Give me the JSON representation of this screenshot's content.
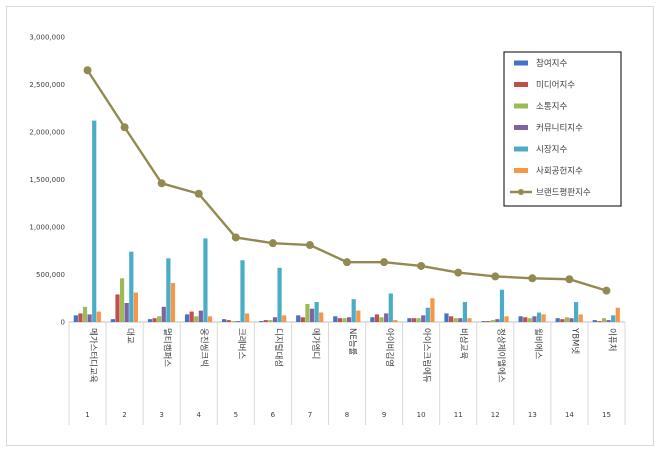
{
  "chart_data": {
    "type": "bar",
    "title": "",
    "xlabel": "",
    "ylabel": "",
    "ylim": [
      0,
      3000000
    ],
    "yticks": [
      "0",
      "500,000",
      "1,000,000",
      "1,500,000",
      "2,000,000",
      "2,500,000",
      "3,000,000"
    ],
    "categories": [
      "메가스터디교육",
      "대교",
      "멀티캠퍼스",
      "웅진씽크빅",
      "크레버스",
      "디지털대성",
      "메가엠디",
      "NE능률",
      "아이비김영",
      "아이스크림에듀",
      "비상교육",
      "정상제이엘에스",
      "윌비에스",
      "YBM넷",
      "이퓨처"
    ],
    "category_numbers": [
      "1",
      "2",
      "3",
      "4",
      "5",
      "6",
      "7",
      "8",
      "9",
      "10",
      "11",
      "12",
      "13",
      "14",
      "15"
    ],
    "series": [
      {
        "name": "참여지수",
        "color": "#4472c4",
        "values": [
          70000,
          30000,
          30000,
          80000,
          30000,
          10000,
          70000,
          60000,
          50000,
          40000,
          90000,
          10000,
          60000,
          40000,
          20000
        ]
      },
      {
        "name": "미디어지수",
        "color": "#c0504d",
        "values": [
          90000,
          290000,
          40000,
          110000,
          20000,
          20000,
          50000,
          40000,
          80000,
          40000,
          60000,
          10000,
          50000,
          30000,
          10000
        ]
      },
      {
        "name": "소통지수",
        "color": "#9bbb59",
        "values": [
          160000,
          460000,
          60000,
          60000,
          10000,
          20000,
          190000,
          40000,
          50000,
          40000,
          40000,
          20000,
          40000,
          50000,
          40000
        ]
      },
      {
        "name": "커뮤니티지수",
        "color": "#8064a2",
        "values": [
          80000,
          200000,
          160000,
          120000,
          10000,
          50000,
          140000,
          50000,
          90000,
          70000,
          40000,
          30000,
          60000,
          40000,
          20000
        ]
      },
      {
        "name": "시장지수",
        "color": "#4bacc6",
        "values": [
          2120000,
          740000,
          670000,
          880000,
          650000,
          570000,
          210000,
          240000,
          300000,
          150000,
          210000,
          340000,
          100000,
          210000,
          70000
        ]
      },
      {
        "name": "사회공헌지수",
        "color": "#f79646",
        "values": [
          110000,
          310000,
          410000,
          60000,
          90000,
          70000,
          100000,
          120000,
          20000,
          250000,
          40000,
          60000,
          80000,
          80000,
          150000
        ]
      }
    ],
    "line": {
      "name": "브랜드평판지수",
      "color": "#938953",
      "values": [
        2650000,
        2050000,
        1460000,
        1350000,
        890000,
        830000,
        810000,
        630000,
        630000,
        590000,
        520000,
        480000,
        460000,
        450000,
        330000
      ]
    },
    "legend_position": "top-right",
    "grid": false
  }
}
